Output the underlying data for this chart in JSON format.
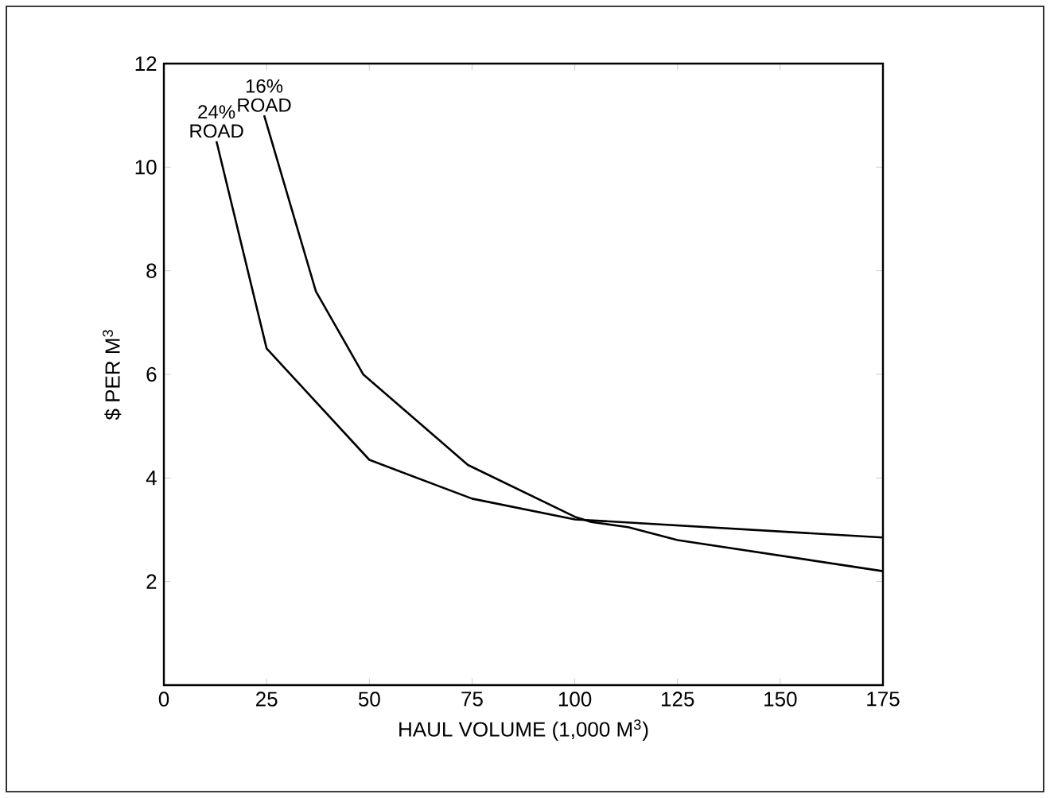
{
  "chart_data": {
    "type": "line",
    "xlabel": "HAUL VOLUME (1,000 M$^{3}$)",
    "ylabel": "$ PER M$^{3}$",
    "xlim": [
      0,
      175
    ],
    "ylim": [
      0,
      12
    ],
    "xticks": [
      0,
      25,
      50,
      75,
      100,
      125,
      150,
      175
    ],
    "yticks": [
      2,
      4,
      6,
      8,
      10,
      12
    ],
    "series": [
      {
        "name": "24% ROAD",
        "color": "#000000",
        "x": [
          12.8,
          25,
          50,
          75,
          100,
          175
        ],
        "values": [
          10.5,
          6.5,
          4.35,
          3.6,
          3.2,
          2.85
        ]
      },
      {
        "name": "16% ROAD",
        "color": "#000000",
        "x": [
          24.4,
          37,
          48.5,
          74,
          100,
          104,
          113,
          125,
          150,
          175
        ],
        "values": [
          11,
          7.6,
          6,
          4.25,
          3.25,
          3.15,
          3.05,
          2.8,
          2.5,
          2.2
        ]
      }
    ],
    "grid": false,
    "marker": "none",
    "line_style": "solid"
  }
}
